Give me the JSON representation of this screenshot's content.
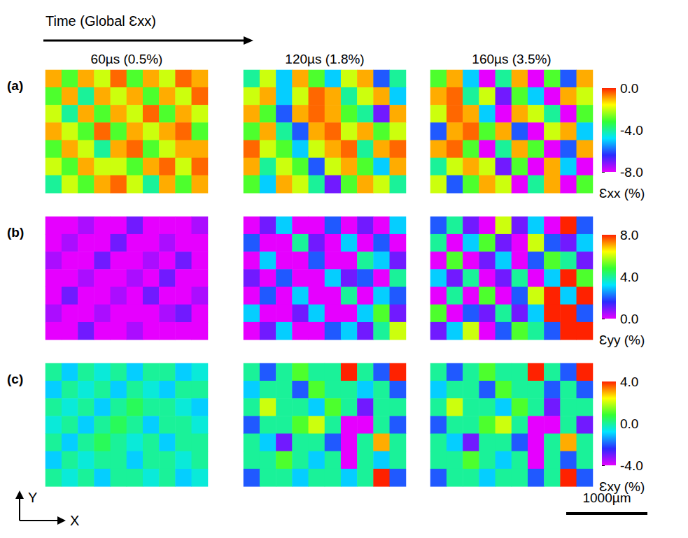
{
  "header": {
    "title": "Time (Global Ɛxx)",
    "columns": [
      "60µs (0.5%)",
      "120µs (1.8%)",
      "160µs (3.5%)"
    ]
  },
  "axes_indicator": {
    "x": "X",
    "y": "Y"
  },
  "scale_bar": {
    "value": 1000,
    "label": "1000µm"
  },
  "chart_data": [
    {
      "type": "heatmap",
      "panel": "(a)",
      "tick_labels": false,
      "xlim": [
        0,
        2000
      ],
      "ylim": [
        0,
        1520
      ],
      "colors": [
        "#e600ff",
        "#2a2aff",
        "#00e5ff",
        "#33ff33",
        "#ffff00",
        "#ff2200"
      ],
      "colorbar": {
        "label": "Ɛxx (%)",
        "range": [
          -8,
          0
        ],
        "ticks": [
          {
            "value": 0,
            "label": "0.0"
          },
          {
            "value": -4,
            "label": "-4.0"
          },
          {
            "value": -8,
            "label": "-8.0"
          }
        ]
      },
      "cells": [
        [
          [
            -1,
            -3,
            -1,
            -2,
            -0.5,
            -3,
            -1,
            -2,
            -0.5,
            -1
          ],
          [
            -3,
            -1,
            -4,
            -1,
            -2,
            -1,
            -3,
            -1,
            -2,
            -0.5
          ],
          [
            -2,
            -4,
            -1,
            -3,
            -1,
            -2,
            -0.5,
            -3,
            -1,
            -2
          ],
          [
            -1,
            -2,
            -3,
            -0.5,
            -3,
            -1,
            -2,
            -1,
            -0.5,
            -3
          ],
          [
            -3,
            -1,
            -2,
            -4,
            -1,
            -0.5,
            -3,
            -2,
            -1,
            -1
          ],
          [
            -2,
            -3,
            -1,
            -2,
            -2,
            -3,
            -1,
            -0.5,
            -2,
            -0.5
          ],
          [
            -4,
            -2,
            -3,
            -1,
            -0.5,
            -2,
            -4,
            -1,
            -3,
            -1
          ]
        ],
        [
          [
            -4,
            -2,
            -5,
            -1,
            -3,
            -5,
            -2,
            -1,
            -6,
            -4
          ],
          [
            -2,
            -1,
            -5,
            -2,
            -0.5,
            -1,
            -4,
            -2,
            -1,
            -5
          ],
          [
            -1,
            -3,
            -6,
            -1,
            -0.5,
            -1,
            -3,
            -4,
            -7,
            -1
          ],
          [
            -3,
            -1,
            -4,
            -6,
            -1,
            -0.5,
            -2,
            -1,
            -3,
            -2
          ],
          [
            -0.5,
            -2,
            -3,
            -5,
            -2,
            -1,
            -0.5,
            -4,
            -1,
            -0.5
          ],
          [
            -1,
            -4,
            -2,
            -3,
            -6,
            -2,
            -1,
            -3,
            -5,
            -1
          ],
          [
            -3,
            -5,
            -1,
            -2,
            -4,
            -7,
            -3,
            -1,
            -2,
            -4
          ]
        ],
        [
          [
            -3,
            -1,
            -5,
            -8,
            -4,
            -1,
            -8,
            -3,
            -6,
            -1
          ],
          [
            -1,
            -0.5,
            -4,
            -2,
            -7,
            -3,
            -5,
            -8,
            -1,
            -2
          ],
          [
            -2,
            -0.5,
            -1,
            -5,
            -8,
            -1,
            -2,
            -4,
            -8,
            -3
          ],
          [
            -6,
            -1,
            -0.5,
            -3,
            -1,
            -6,
            -8,
            -2,
            -1,
            -5
          ],
          [
            -1,
            -0.5,
            -3,
            -8,
            -4,
            -1,
            -3,
            -8,
            -6,
            -1
          ],
          [
            -4,
            -2,
            -1,
            -2,
            -7,
            -3,
            -8,
            -1,
            -5,
            -8
          ],
          [
            -2,
            -6,
            -3,
            -1,
            -2,
            -8,
            -4,
            -1,
            -8,
            -3
          ]
        ]
      ]
    },
    {
      "type": "heatmap",
      "panel": "(b)",
      "tick_labels": false,
      "xlim": [
        0,
        2000
      ],
      "ylim": [
        0,
        1520
      ],
      "colors": [
        "#e600ff",
        "#2a2aff",
        "#00e5ff",
        "#33ff33",
        "#ffff00",
        "#ff2200"
      ],
      "colorbar": {
        "label": "Ɛyy (%)",
        "range": [
          0,
          8
        ],
        "ticks": [
          {
            "value": 8,
            "label": "8.0"
          },
          {
            "value": 4,
            "label": "4.0"
          },
          {
            "value": 0,
            "label": "0.0"
          }
        ]
      },
      "cells": [
        [
          [
            0,
            0,
            0.5,
            0,
            0,
            1,
            0,
            0,
            0,
            0.5
          ],
          [
            0,
            0.5,
            0,
            0,
            1,
            0,
            0,
            0.5,
            0,
            0
          ],
          [
            0.5,
            0,
            0,
            1,
            0,
            0,
            0.5,
            0,
            1,
            0
          ],
          [
            0,
            0,
            0.5,
            0,
            0,
            0.5,
            0,
            1,
            0,
            0
          ],
          [
            0,
            1,
            0,
            0,
            0.5,
            0,
            1,
            0,
            0,
            0.5
          ],
          [
            0.5,
            0,
            0,
            0.5,
            0,
            0,
            0,
            0.5,
            1,
            0
          ],
          [
            0,
            0,
            1,
            0,
            0,
            0.5,
            0,
            0,
            0,
            0
          ]
        ],
        [
          [
            0,
            1,
            3,
            0,
            0,
            2,
            0,
            1,
            0,
            3
          ],
          [
            2,
            0,
            0,
            4,
            1,
            0,
            3,
            0,
            2,
            0
          ],
          [
            0,
            3,
            0,
            0,
            2,
            0,
            0,
            4,
            3,
            1
          ],
          [
            1,
            0,
            2,
            0,
            0,
            3,
            1,
            2,
            0,
            4
          ],
          [
            0,
            2,
            0,
            3,
            0,
            0,
            4,
            0,
            3,
            2
          ],
          [
            3,
            0,
            0,
            1,
            3,
            0,
            0,
            3,
            5,
            1
          ],
          [
            0,
            1,
            3,
            0,
            0,
            2,
            3,
            1,
            4,
            6
          ]
        ],
        [
          [
            2,
            4,
            1,
            0,
            6,
            1,
            3,
            0,
            8,
            2
          ],
          [
            4,
            0,
            3,
            5,
            1,
            0,
            6,
            2,
            1,
            3
          ],
          [
            0,
            5,
            0,
            1,
            3,
            0,
            2,
            5,
            4,
            1
          ],
          [
            3,
            1,
            4,
            0,
            1,
            4,
            0,
            3,
            8,
            5
          ],
          [
            0,
            4,
            0,
            5,
            0,
            2,
            6,
            8,
            3,
            8
          ],
          [
            5,
            0,
            2,
            1,
            4,
            1,
            3,
            8,
            8,
            2
          ],
          [
            1,
            3,
            6,
            0,
            2,
            5,
            4,
            2,
            8,
            8
          ]
        ]
      ]
    },
    {
      "type": "heatmap",
      "panel": "(c)",
      "tick_labels": false,
      "xlim": [
        0,
        2000
      ],
      "ylim": [
        0,
        1520
      ],
      "colors": [
        "#e600ff",
        "#2a2aff",
        "#00e5ff",
        "#33ff33",
        "#ffff00",
        "#ff2200"
      ],
      "colorbar": {
        "label": "Ɛxy (%)",
        "range": [
          -4,
          4
        ],
        "ticks": [
          {
            "value": 4,
            "label": "4.0"
          },
          {
            "value": 0,
            "label": "0.0"
          },
          {
            "value": -4,
            "label": "-4.0"
          }
        ]
      },
      "cells": [
        [
          [
            0,
            -1,
            0,
            -0.5,
            0,
            -1,
            0,
            0,
            -1,
            -0.5
          ],
          [
            -1,
            0,
            -0.5,
            0,
            -1,
            0,
            -0.5,
            -1,
            0,
            0
          ],
          [
            0,
            -0.5,
            0,
            -1,
            0,
            0.5,
            0,
            0,
            -0.5,
            -1
          ],
          [
            -0.5,
            0,
            -1,
            0,
            0.5,
            0,
            -1,
            0,
            0,
            -0.5
          ],
          [
            0,
            -1,
            0,
            0.5,
            0,
            -0.5,
            0,
            -1,
            0,
            0
          ],
          [
            -1,
            0,
            -0.5,
            0,
            0,
            -1,
            0,
            0,
            -0.5,
            0
          ],
          [
            0,
            -0.5,
            0,
            -1,
            0,
            0,
            -0.5,
            0,
            -1,
            -0.5
          ]
        ],
        [
          [
            0,
            -2,
            0,
            1,
            0,
            0,
            4,
            0,
            -2,
            4
          ],
          [
            -1,
            0,
            0,
            -2,
            1,
            0,
            0,
            -1,
            0,
            -2
          ],
          [
            0,
            2,
            0,
            0,
            -1,
            1,
            0,
            -3,
            0,
            0
          ],
          [
            -2,
            0,
            0,
            1,
            2,
            0,
            -4,
            -4,
            0,
            -2
          ],
          [
            0,
            -1,
            -3,
            0,
            0,
            -2,
            -4,
            0,
            3,
            0
          ],
          [
            0,
            0,
            1,
            0,
            -1,
            0,
            -4,
            0,
            -1,
            0
          ],
          [
            -2,
            0,
            0,
            -1,
            0,
            0,
            -1,
            0,
            4,
            -2
          ]
        ],
        [
          [
            0,
            -2,
            0,
            1,
            0,
            0,
            4,
            0,
            -2,
            4
          ],
          [
            -1,
            0,
            0,
            -2,
            1,
            0,
            0,
            -2,
            0,
            -2
          ],
          [
            0,
            2,
            0,
            0,
            -1,
            1,
            0,
            -3,
            0,
            0
          ],
          [
            -2,
            0,
            0,
            1,
            2,
            0,
            -4,
            -4,
            0,
            -3
          ],
          [
            0,
            -1,
            -3,
            0,
            0,
            -2,
            -4,
            0,
            3,
            0
          ],
          [
            0,
            0,
            1,
            0,
            -1,
            0,
            -4,
            0,
            -2,
            0
          ],
          [
            -2,
            0,
            0,
            -1,
            0,
            0,
            -2,
            0,
            4,
            -2
          ]
        ]
      ]
    }
  ]
}
